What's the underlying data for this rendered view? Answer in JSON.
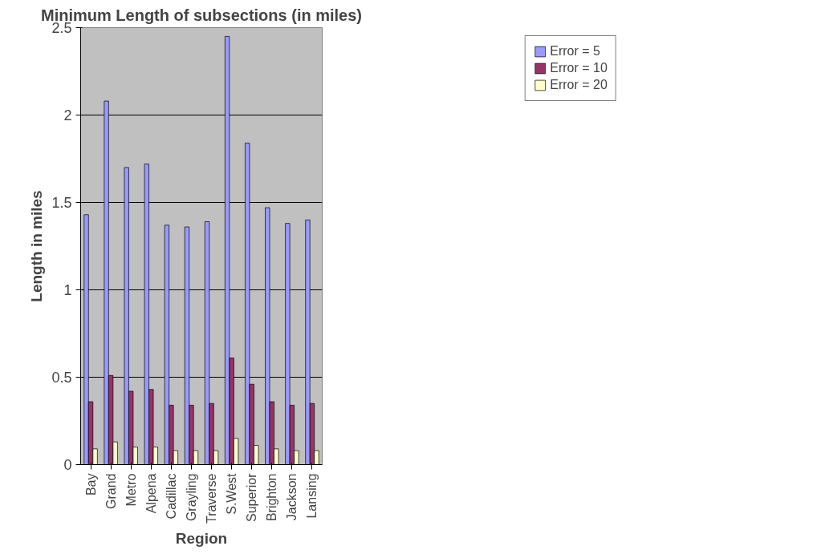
{
  "chart_data": {
    "type": "bar",
    "title": "Minimum Length of subsections (in miles)",
    "xlabel": "Region",
    "ylabel": "Length in miles",
    "categories": [
      "Bay",
      "Grand",
      "Metro",
      "Alpena",
      "Cadillac",
      "Grayling",
      "Traverse",
      "S.West",
      "Superior",
      "Brighton",
      "Jackson",
      "Lansing"
    ],
    "series": [
      {
        "name": "Error = 5",
        "color": "#9999ff",
        "values": [
          1.43,
          2.08,
          1.7,
          1.72,
          1.37,
          1.36,
          1.39,
          2.45,
          1.84,
          1.47,
          1.38,
          1.4
        ]
      },
      {
        "name": "Error = 10",
        "color": "#993366",
        "values": [
          0.36,
          0.51,
          0.42,
          0.43,
          0.34,
          0.34,
          0.35,
          0.61,
          0.46,
          0.36,
          0.34,
          0.35
        ]
      },
      {
        "name": "Error = 20",
        "color": "#ffffcc",
        "values": [
          0.09,
          0.13,
          0.1,
          0.1,
          0.08,
          0.08,
          0.08,
          0.15,
          0.11,
          0.09,
          0.08,
          0.08
        ]
      }
    ],
    "ylim": [
      0,
      2.5
    ],
    "yticks": [
      0,
      0.5,
      1,
      1.5,
      2,
      2.5
    ],
    "grid": "y",
    "legend": "right"
  }
}
